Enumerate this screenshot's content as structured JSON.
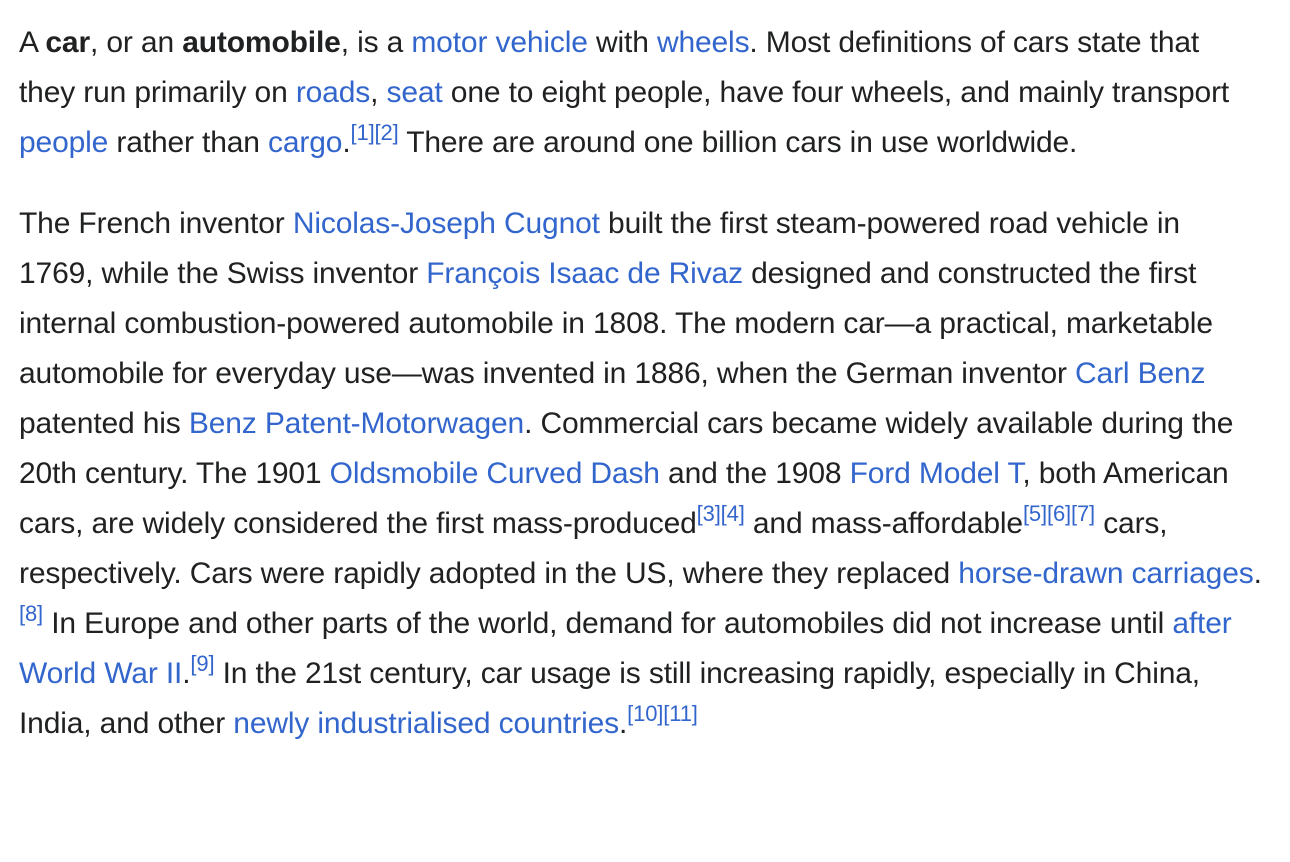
{
  "p1": {
    "s1": "A ",
    "b1": "car",
    "s2": ", or an ",
    "b2": "automobile",
    "s3": ", is a ",
    "l_motor_vehicle": "motor vehicle",
    "s4": " with ",
    "l_wheels": "wheels",
    "s5": ". Most definitions of cars state that they run primarily on ",
    "l_roads": "roads",
    "s6": ", ",
    "l_seat": "seat",
    "s7": " one to eight people, have four wheels, and mainly transport ",
    "l_people": "people",
    "s8": " rather than ",
    "l_cargo": "cargo",
    "s9": ".",
    "r1": "[1]",
    "r2": "[2]",
    "s10": " There are around one billion cars in use worldwide."
  },
  "p2": {
    "s1": "The French inventor ",
    "l_cugnot": "Nicolas-Joseph Cugnot",
    "s2": " built the first steam-powered road vehicle in 1769, while the Swiss inventor ",
    "l_rivaz": "François Isaac de Rivaz",
    "s3": " designed and constructed the first internal combustion-powered automobile in 1808. The modern car—a practical, marketable automobile for everyday use—was invented in 1886, when the German inventor ",
    "l_benz": "Carl Benz",
    "s4": " patented his ",
    "l_motorwagen": "Benz Patent-Motorwagen",
    "s5": ". Commercial cars became widely available during the 20th century. The 1901 ",
    "l_oldsmobile": "Oldsmobile Curved Dash",
    "s6": " and the 1908 ",
    "l_model_t": "Ford Model T",
    "s7": ", both American cars, are widely considered the first mass-produced",
    "r3": "[3]",
    "r4": "[4]",
    "s8": " and mass-affordable",
    "r5": "[5]",
    "r6": "[6]",
    "r7": "[7]",
    "s9": " cars, respectively. Cars were rapidly adopted in the US, where they replaced ",
    "l_carriages": "horse-drawn carriages",
    "s10": ".",
    "r8": "[8]",
    "s11": " In Europe and other parts of the world, demand for automobiles did not increase until ",
    "l_ww2": "after World War II",
    "s12": ".",
    "r9": "[9]",
    "s13": " In the 21st century, car usage is still increasing rapidly, especially in China, India, and other ",
    "l_newly": "newly industrialised countries",
    "s14": ".",
    "r10": "[10]",
    "r11": "[11]"
  },
  "colors": {
    "text": "#202122",
    "link": "#3366cc",
    "background": "#ffffff"
  }
}
